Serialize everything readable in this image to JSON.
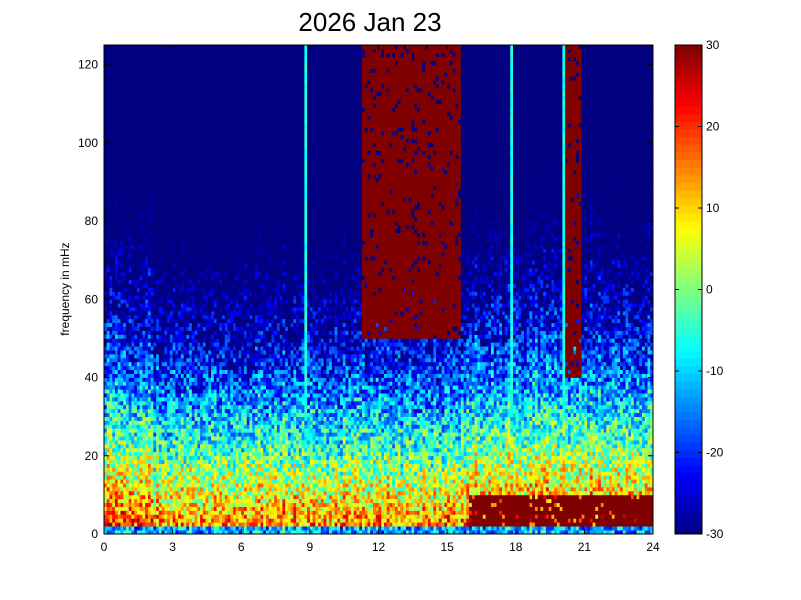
{
  "chart_data": {
    "type": "heatmap",
    "title": "2026 Jan 23",
    "xlabel": "",
    "ylabel": "frequency in mHz",
    "xlim": [
      0,
      24
    ],
    "ylim": [
      0,
      125
    ],
    "x_ticks": [
      "0",
      "3",
      "6",
      "9",
      "12",
      "15",
      "18",
      "21",
      "24"
    ],
    "y_ticks": [
      "0",
      "20",
      "40",
      "60",
      "80",
      "100",
      "120"
    ],
    "colorbar": {
      "colormap": "jet",
      "range": [
        -30,
        30
      ],
      "ticks": [
        "-30",
        "-20",
        "-10",
        "0",
        "10",
        "20",
        "30"
      ]
    },
    "grid": false,
    "saturated_regions": [
      {
        "x_range": [
          11.3,
          15.6
        ],
        "y_range": [
          50,
          125
        ],
        "value": 30
      },
      {
        "x_range": [
          20.2,
          20.9
        ],
        "y_range": [
          40,
          125
        ],
        "value": 30
      },
      {
        "x_range": [
          15.9,
          24
        ],
        "y_range": [
          2,
          10
        ],
        "value": 30
      }
    ],
    "vertical_streaks_hours": [
      8.8,
      17.8,
      20.1
    ]
  }
}
